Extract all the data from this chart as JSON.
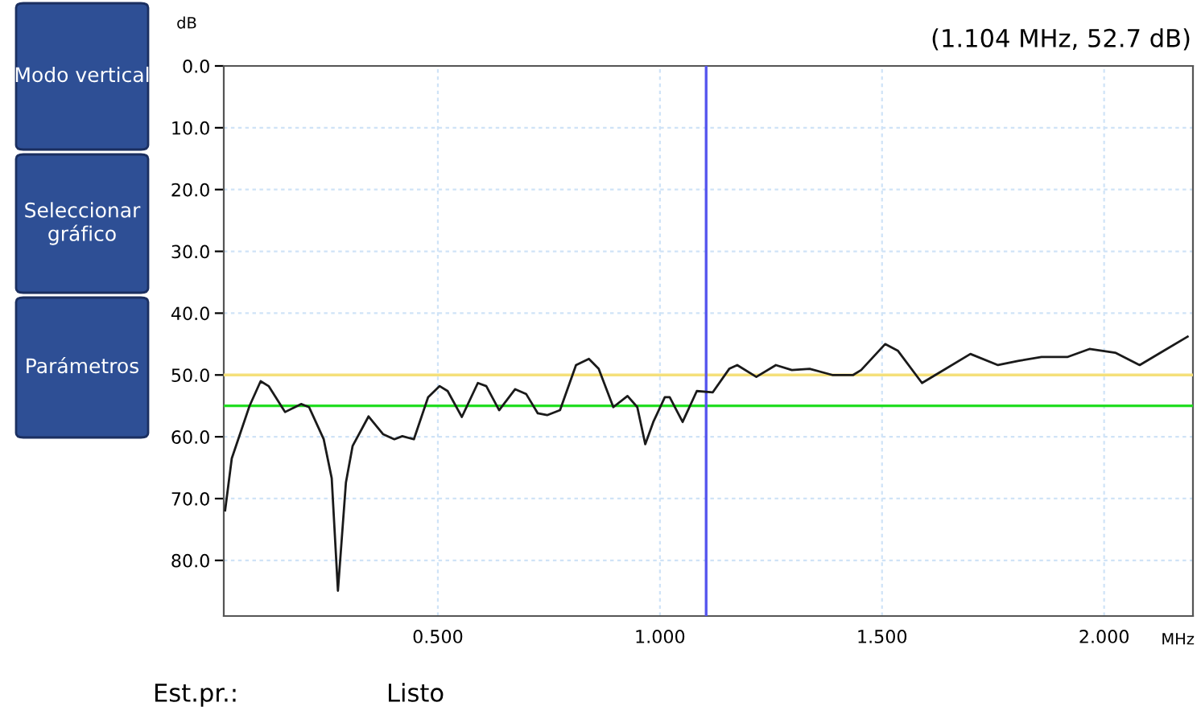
{
  "chart_data": {
    "type": "line",
    "xlabel": "MHz",
    "ylabel": "dB",
    "x": [
      0.021,
      0.036,
      0.076,
      0.101,
      0.119,
      0.156,
      0.192,
      0.21,
      0.243,
      0.261,
      0.275,
      0.293,
      0.308,
      0.344,
      0.377,
      0.402,
      0.42,
      0.446,
      0.478,
      0.504,
      0.522,
      0.554,
      0.59,
      0.609,
      0.638,
      0.674,
      0.699,
      0.725,
      0.746,
      0.775,
      0.811,
      0.84,
      0.862,
      0.895,
      0.927,
      0.949,
      0.967,
      0.985,
      1.011,
      1.022,
      1.051,
      1.083,
      1.119,
      1.156,
      1.174,
      1.217,
      1.261,
      1.297,
      1.337,
      1.388,
      1.435,
      1.453,
      1.507,
      1.536,
      1.59,
      1.627,
      1.699,
      1.761,
      1.808,
      1.859,
      1.917,
      1.967,
      2.025,
      2.08,
      2.134,
      2.188
    ],
    "series": [
      {
        "color": "#1a1a1a",
        "values": [
          71.9,
          63.5,
          55,
          51,
          51.8,
          56,
          54.7,
          55.2,
          60.4,
          66.7,
          84.9,
          67.4,
          61.5,
          56.7,
          59.6,
          60.4,
          59.9,
          60.4,
          53.6,
          51.8,
          52.6,
          56.8,
          51.3,
          51.8,
          55.7,
          52.3,
          53.1,
          56.2,
          56.5,
          55.7,
          48.4,
          47.4,
          49,
          55.2,
          53.4,
          55.2,
          61.2,
          57.6,
          53.6,
          53.6,
          57.6,
          52.6,
          52.8,
          49,
          48.4,
          50.3,
          48.4,
          49.2,
          49,
          50,
          50,
          49.2,
          45,
          46.1,
          51.3,
          49.7,
          46.6,
          48.4,
          47.7,
          47.1,
          47.1,
          45.8,
          46.4,
          48.4,
          46.1,
          43.8
        ]
      }
    ],
    "xlim": [
      0.018,
      2.2
    ],
    "ylim": [
      89,
      0
    ],
    "xticks": [
      {
        "value": 0.5,
        "label": "0.500"
      },
      {
        "value": 1.0,
        "label": "1.000"
      },
      {
        "value": 1.5,
        "label": "1.500"
      },
      {
        "value": 2.0,
        "label": "2.000"
      }
    ],
    "yticks": [
      {
        "value": 0,
        "label": "0.0"
      },
      {
        "value": 10,
        "label": "10.0"
      },
      {
        "value": 20,
        "label": "20.0"
      },
      {
        "value": 30,
        "label": "30.0"
      },
      {
        "value": 40,
        "label": "40.0"
      },
      {
        "value": 50,
        "label": "50.0"
      },
      {
        "value": 60,
        "label": "60.0"
      },
      {
        "value": 70,
        "label": "70.0"
      },
      {
        "value": 80,
        "label": "80.0"
      }
    ],
    "grid": true,
    "marker": "none",
    "line_style": "solid",
    "ref_lines": [
      {
        "axis": "y",
        "value": 50,
        "color": "#f5e07a"
      },
      {
        "axis": "y",
        "value": 55,
        "color": "#22dd22"
      },
      {
        "axis": "x",
        "value": 1.104,
        "color": "#5555ee"
      }
    ],
    "annotations": [
      "(1.104 MHz, 52.7 dB)",
      "Modo vertical",
      "Seleccionar gráfico",
      "Parámetros",
      "Est.pr.:",
      "Listo"
    ]
  }
}
